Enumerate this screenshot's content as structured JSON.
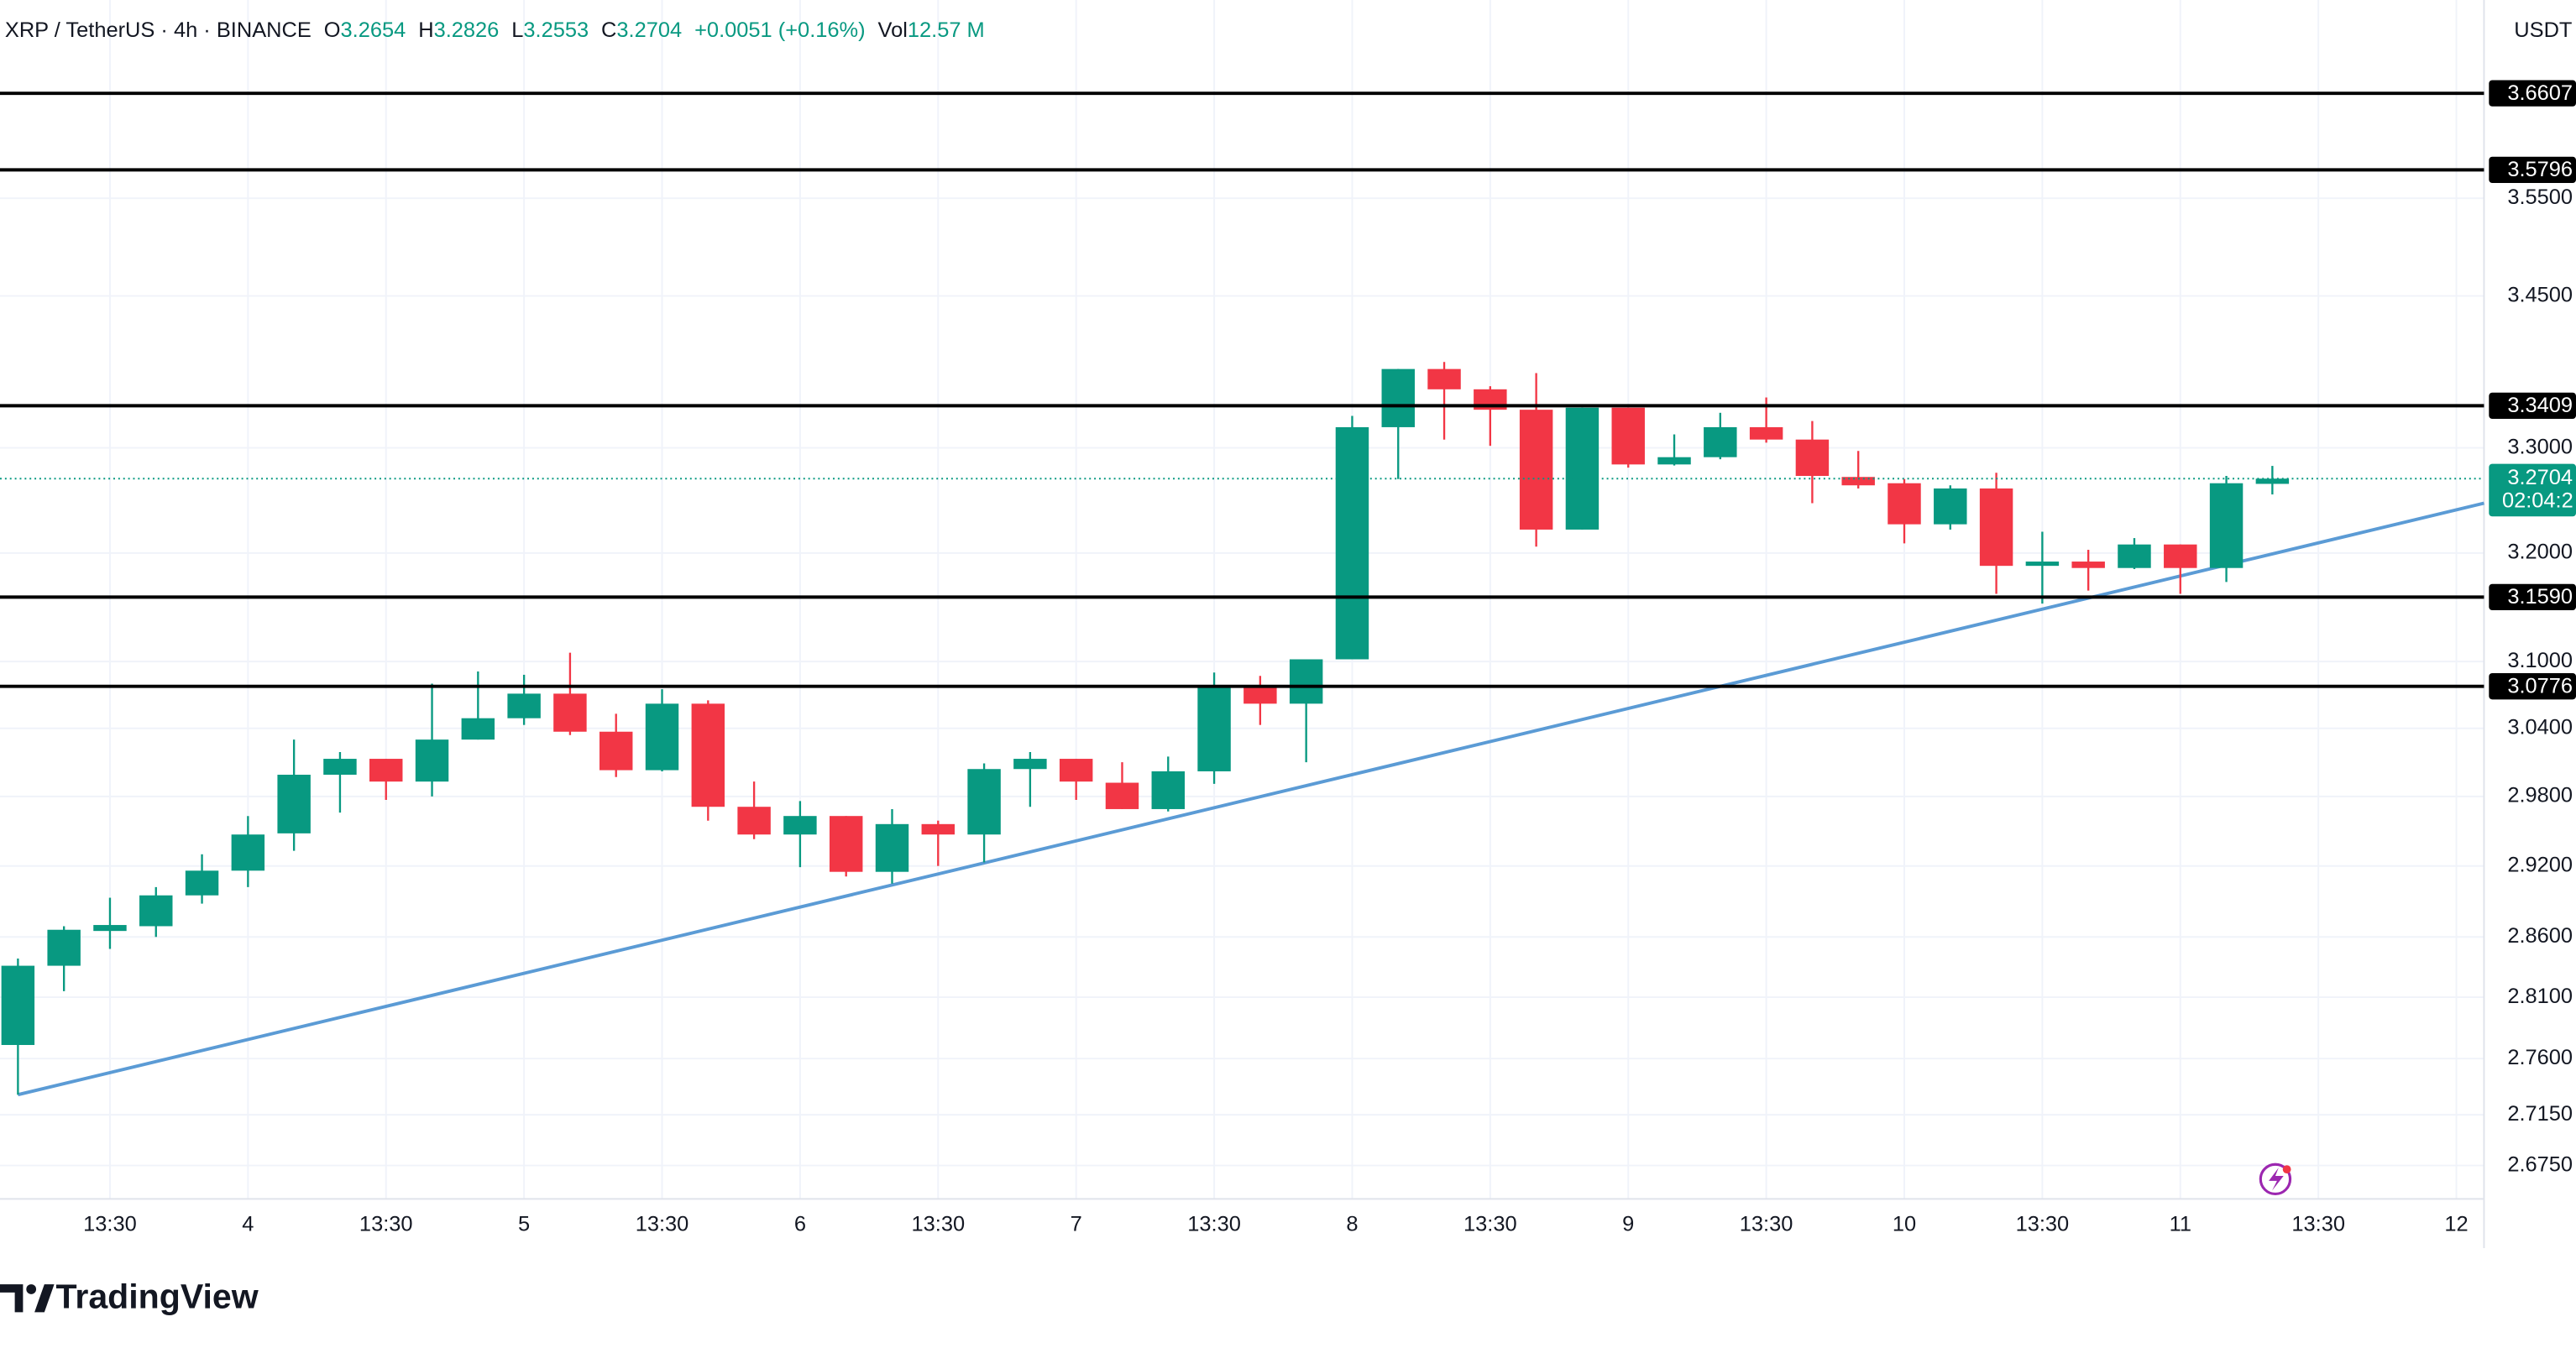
{
  "header": {
    "symbol": "XRP / TetherUS · 4h · BINANCE",
    "ohlc_labels": [
      "O",
      "H",
      "L",
      "C"
    ],
    "change": "+0.0051 (+0.16%)",
    "volume_label": "Vol",
    "volume": "12.57 M"
  },
  "brand": "TradingView",
  "chart_data": {
    "type": "candlestick",
    "currency": "USDT",
    "log_scale": true,
    "grid": true,
    "up_color": "#089981",
    "down_color": "#f23645",
    "open": [
      2.771,
      2.836,
      2.865,
      2.869,
      2.895,
      2.916,
      2.948,
      2.999,
      3.013,
      2.993,
      3.03,
      3.049,
      3.071,
      3.037,
      3.003,
      3.062,
      2.971,
      2.947,
      2.963,
      2.915,
      2.956,
      2.947,
      3.004,
      3.013,
      2.992,
      2.969,
      3.002,
      3.078,
      3.062,
      3.102,
      3.32,
      3.377,
      3.357,
      3.337,
      3.222,
      3.339,
      3.284,
      3.291,
      3.32,
      3.308,
      3.272,
      3.266,
      3.227,
      3.261,
      3.188,
      3.192,
      3.186,
      3.208,
      3.186,
      3.2654
    ],
    "high": [
      2.842,
      2.869,
      2.893,
      2.902,
      2.93,
      2.963,
      3.03,
      3.019,
      3.013,
      3.08,
      3.091,
      3.088,
      3.108,
      3.053,
      3.075,
      3.065,
      2.993,
      2.976,
      2.963,
      2.969,
      2.959,
      3.009,
      3.019,
      3.013,
      3.01,
      3.015,
      3.09,
      3.087,
      3.102,
      3.331,
      3.377,
      3.384,
      3.36,
      3.373,
      3.339,
      3.339,
      3.313,
      3.334,
      3.349,
      3.326,
      3.297,
      3.27,
      3.264,
      3.276,
      3.22,
      3.203,
      3.214,
      3.208,
      3.273,
      3.2826
    ],
    "low": [
      2.731,
      2.815,
      2.85,
      2.86,
      2.888,
      2.902,
      2.933,
      2.966,
      2.977,
      2.98,
      3.03,
      3.043,
      3.034,
      2.997,
      3.002,
      2.959,
      2.943,
      2.919,
      2.911,
      2.905,
      2.92,
      2.923,
      2.971,
      2.977,
      2.969,
      2.967,
      2.991,
      3.043,
      3.01,
      3.102,
      3.27,
      3.308,
      3.302,
      3.206,
      3.222,
      3.281,
      3.283,
      3.289,
      3.305,
      3.247,
      3.261,
      3.209,
      3.222,
      3.162,
      3.153,
      3.165,
      3.185,
      3.162,
      3.173,
      3.2553
    ],
    "close": [
      2.836,
      2.866,
      2.87,
      2.895,
      2.916,
      2.947,
      2.999,
      3.013,
      2.993,
      3.03,
      3.049,
      3.071,
      3.037,
      3.003,
      3.062,
      2.971,
      2.947,
      2.963,
      2.915,
      2.956,
      2.947,
      3.004,
      3.013,
      2.993,
      2.969,
      3.002,
      3.078,
      3.062,
      3.102,
      3.32,
      3.377,
      3.357,
      3.337,
      3.222,
      3.339,
      3.284,
      3.291,
      3.32,
      3.308,
      3.273,
      3.264,
      3.227,
      3.261,
      3.188,
      3.192,
      3.186,
      3.208,
      3.186,
      3.266,
      3.2704
    ],
    "countdown": "02:04:2",
    "xlim": [
      -0.39,
      53.6
    ],
    "xticks": [
      {
        "value": 2,
        "label": "13:30"
      },
      {
        "value": 5,
        "label": "4"
      },
      {
        "value": 8,
        "label": "13:30"
      },
      {
        "value": 11,
        "label": "5"
      },
      {
        "value": 14,
        "label": "13:30"
      },
      {
        "value": 17,
        "label": "6"
      },
      {
        "value": 20,
        "label": "13:30"
      },
      {
        "value": 23,
        "label": "7"
      },
      {
        "value": 26,
        "label": "13:30"
      },
      {
        "value": 29,
        "label": "8"
      },
      {
        "value": 32,
        "label": "13:30"
      },
      {
        "value": 35,
        "label": "9"
      },
      {
        "value": 38,
        "label": "13:30"
      },
      {
        "value": 41,
        "label": "10"
      },
      {
        "value": 44,
        "label": "13:30"
      },
      {
        "value": 47,
        "label": "11"
      },
      {
        "value": 50,
        "label": "13:30"
      },
      {
        "value": 53,
        "label": "12"
      }
    ],
    "ylim": [
      2.649,
      3.762
    ],
    "yticks": [
      {
        "value": 3.55,
        "label": "3.5500"
      },
      {
        "value": 3.45,
        "label": "3.4500"
      },
      {
        "value": 3.3,
        "label": "3.3000"
      },
      {
        "value": 3.2,
        "label": "3.2000"
      },
      {
        "value": 3.1,
        "label": "3.1000"
      },
      {
        "value": 3.04,
        "label": "3.0400"
      },
      {
        "value": 2.98,
        "label": "2.9800"
      },
      {
        "value": 2.92,
        "label": "2.9200"
      },
      {
        "value": 2.86,
        "label": "2.8600"
      },
      {
        "value": 2.81,
        "label": "2.8100"
      },
      {
        "value": 2.76,
        "label": "2.7600"
      },
      {
        "value": 2.715,
        "label": "2.7150"
      },
      {
        "value": 2.675,
        "label": "2.6750"
      }
    ],
    "levels": [
      3.6607,
      3.5796,
      3.3409,
      {
        "value": 3.159,
        "label": "3.1590"
      },
      3.0776
    ],
    "level_color": "#000000",
    "trendline": {
      "color": "#5b9bd5",
      "x": [
        0,
        53.6
      ],
      "values": [
        2.731,
        3.247
      ]
    }
  }
}
